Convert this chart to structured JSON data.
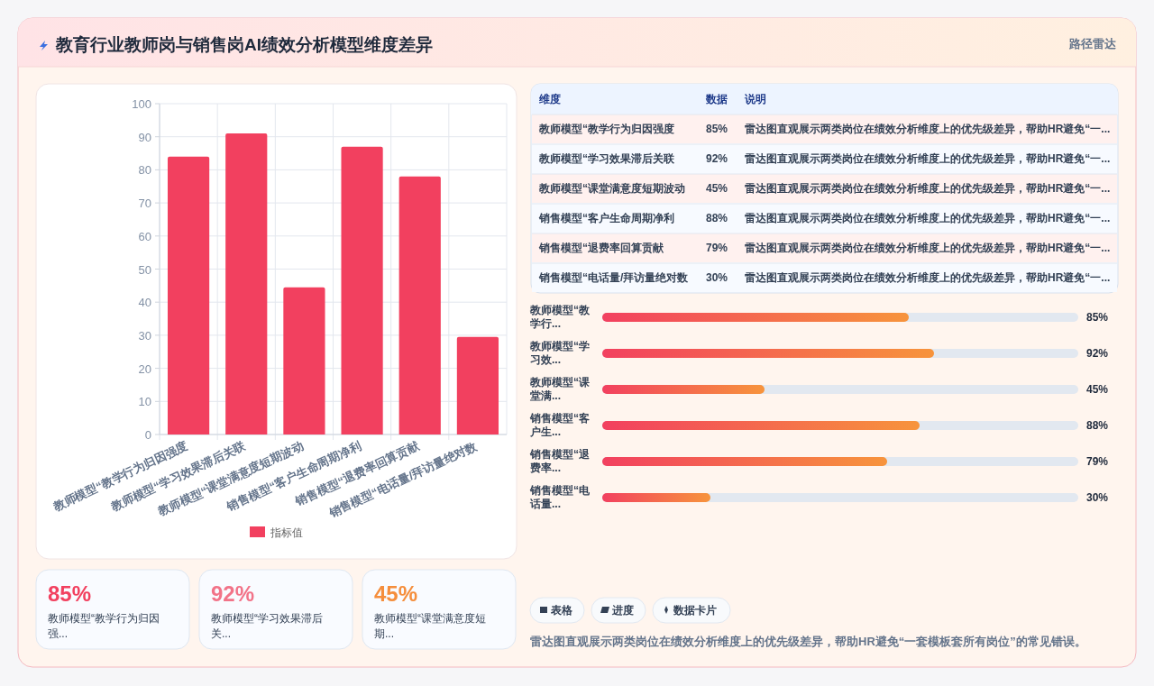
{
  "chart_data": [
    {
      "type": "other",
      "title": "教育行业教师岗与销售岗AI绩效分析模型维度差异",
      "subtitle": "路径雷达"
    },
    {
      "type": "bar",
      "categories": [
        "教师模型“教学行为归因强度",
        "教师模型“学习效果滞后关联",
        "教师模型“课堂满意度短期波动",
        "销售模型“客户生命周期净利",
        "销售模型“退费率回算贡献",
        "销售模型“电话量/拜访量绝对数"
      ],
      "series": [
        {
          "name": "指标值",
          "color": "#f2405f",
          "values": [
            84,
            91,
            44.5,
            87,
            78,
            29.5
          ]
        }
      ],
      "ylim": [
        0,
        100
      ],
      "yticks": [
        0,
        10,
        20,
        30,
        40,
        50,
        60,
        70,
        80,
        90,
        100
      ],
      "grid": true,
      "legend": "bottom"
    },
    {
      "type": "other",
      "categories": [
        "教师模型“教学行为归因强度",
        "教师模型“学习效果滞后关联",
        "教师模型“课堂满意度短期波动",
        "销售模型“客户生命周期净利",
        "销售模型“退费率回算贡献",
        "销售模型“电话量/拜访量绝对数"
      ],
      "values": [
        85,
        92,
        45,
        88,
        79,
        30
      ],
      "value_labels": [
        "85%",
        "92%",
        "45%",
        "88%",
        "79%",
        "30%"
      ],
      "annotations": [
        "维度",
        "数据",
        "说明",
        "雷达图直观展示两类岗位在绩效分析维度上的优先级差异，帮助HR避免“一...",
        "雷达图直观展示两类岗位在绩效分析维度上的优先级差异，帮助HR避免“一...",
        "雷达图直观展示两类岗位在绩效分析维度上的优先级差异，帮助HR避免“一...",
        "雷达图直观展示两类岗位在绩效分析维度上的优先级差异，帮助HR避免“一...",
        "雷达图直观展示两类岗位在绩效分析维度上的优先级差异，帮助HR避免“一...",
        "雷达图直观展示两类岗位在绩效分析维度上的优先级差异，帮助HR避免“一..."
      ]
    },
    {
      "type": "bar",
      "orientation": "horizontal",
      "categories": [
        "教师模型“教学行...",
        "教师模型“学习效...",
        "教师模型“课堂满...",
        "销售模型“客户生...",
        "销售模型“退费率...",
        "销售模型“电话量..."
      ],
      "values": [
        85,
        92,
        45,
        88,
        79,
        30
      ],
      "value_labels": [
        "85%",
        "92%",
        "45%",
        "88%",
        "79%",
        "30%"
      ],
      "xlim": [
        0,
        132
      ],
      "color": "#f2405f"
    },
    {
      "type": "other",
      "categories": [
        "教师模型“教学行为归因强...",
        "教师模型“学习效果滞后关...",
        "教师模型“课堂满意度短期..."
      ],
      "values": [
        85,
        92,
        45
      ],
      "value_labels": [
        "85%",
        "92%",
        "45%"
      ]
    },
    {
      "type": "other",
      "annotations": [
        "表格",
        "进度",
        "数据卡片",
        "雷达图直观展示两类岗位在绩效分析维度上的优先级差异，帮助HR避免“一套模板套所有岗位”的常见错误。"
      ]
    }
  ]
}
